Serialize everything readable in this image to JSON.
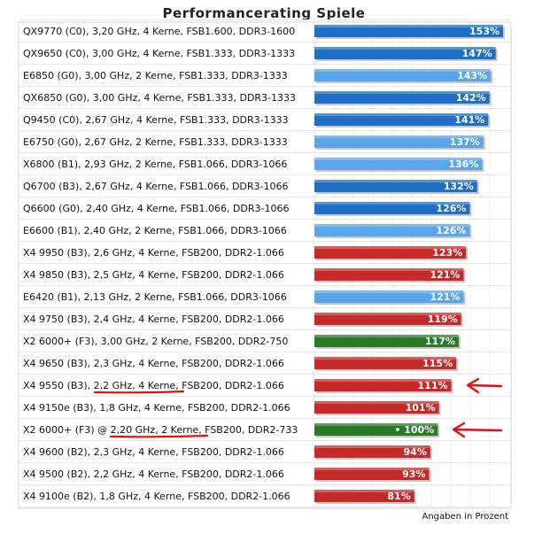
{
  "chart_data": {
    "type": "bar",
    "orientation": "horizontal",
    "title": "Performancerating Spiele",
    "footer": "Angaben in Prozent",
    "value_suffix": "%",
    "grid": true,
    "categories": [
      "QX9770 (C0), 3,20 GHz, 4 Kerne, FSB1.600, DDR3-1600",
      "QX9650 (C0), 3,00 GHz, 4 Kerne, FSB1.333, DDR3-1333",
      "E6850 (G0), 3,00 GHz, 2 Kerne, FSB1.333, DDR3-1333",
      "QX6850 (G0), 3,00 GHz, 4 Kerne, FSB1.333, DDR3-1333",
      "Q9450 (C0), 2,67 GHz, 4 Kerne, FSB1.333, DDR3-1333",
      "E6750 (G0), 2,67 GHz, 2 Kerne, FSB1.333, DDR3-1333",
      "X6800 (B1), 2,93 GHz, 2 Kerne, FSB1.066, DDR3-1066",
      "Q6700 (B3), 2,67 GHz, 4 Kerne, FSB1.066, DDR3-1066",
      "Q6600 (G0), 2,40 GHz, 4 Kerne, FSB1.066, DDR3-1066",
      "E6600 (B1), 2,40 GHz, 2 Kerne, FSB1.066, DDR3-1066",
      "X4 9950 (B3), 2,6 GHz, 4 Kerne, FSB200, DDR2-1.066",
      "X4 9850 (B3), 2,5 GHz, 4 Kerne, FSB200, DDR2-1.066",
      "E6420 (B1), 2,13 GHz, 2 Kerne, FSB1.066, DDR3-1066",
      "X4 9750 (B3), 2,4 GHz, 4 Kerne, FSB200, DDR2-1.066",
      "X2 6000+ (F3), 3,00 GHz, 2 Kerne, FSB200, DDR2-750",
      "X4 9650 (B3), 2,3 GHz, 4 Kerne, FSB200, DDR2-1.066",
      "X4 9550 (B3), 2,2 GHz, 4 Kerne, FSB200, DDR2-1.066",
      "X4 9150e (B3), 1,8 GHz, 4 Kerne, FSB200, DDR2-1.066",
      "X2 6000+ (F3) @ 2,20 GHz, 2 Kerne, FSB200, DDR2-733",
      "X4 9600 (B2), 2,3 GHz, 4 Kerne, FSB200, DDR2-1.066",
      "X4 9500 (B2), 2,2 GHz, 4 Kerne, FSB200, DDR2-1.066",
      "X4 9100e (B2), 1,8 GHz, 4 Kerne, FSB200, DDR2-1.066"
    ],
    "values": [
      153,
      147,
      143,
      142,
      141,
      137,
      136,
      132,
      126,
      126,
      123,
      121,
      121,
      119,
      117,
      115,
      111,
      101,
      100,
      94,
      93,
      81
    ],
    "bar_colors": [
      "#1f6fc4",
      "#1f6fc4",
      "#5aa5ea",
      "#1f6fc4",
      "#1f6fc4",
      "#5aa5ea",
      "#5aa5ea",
      "#1f6fc4",
      "#1f6fc4",
      "#5aa5ea",
      "#c42a2a",
      "#c42a2a",
      "#5aa5ea",
      "#c42a2a",
      "#2a7a2a",
      "#c42a2a",
      "#c42a2a",
      "#c42a2a",
      "#2a7a2a",
      "#c42a2a",
      "#c42a2a",
      "#c42a2a"
    ],
    "reference_index": 18,
    "reference_marker": "•",
    "highlighted_rows": [
      16,
      18
    ],
    "annotation_color": "#e01010"
  }
}
